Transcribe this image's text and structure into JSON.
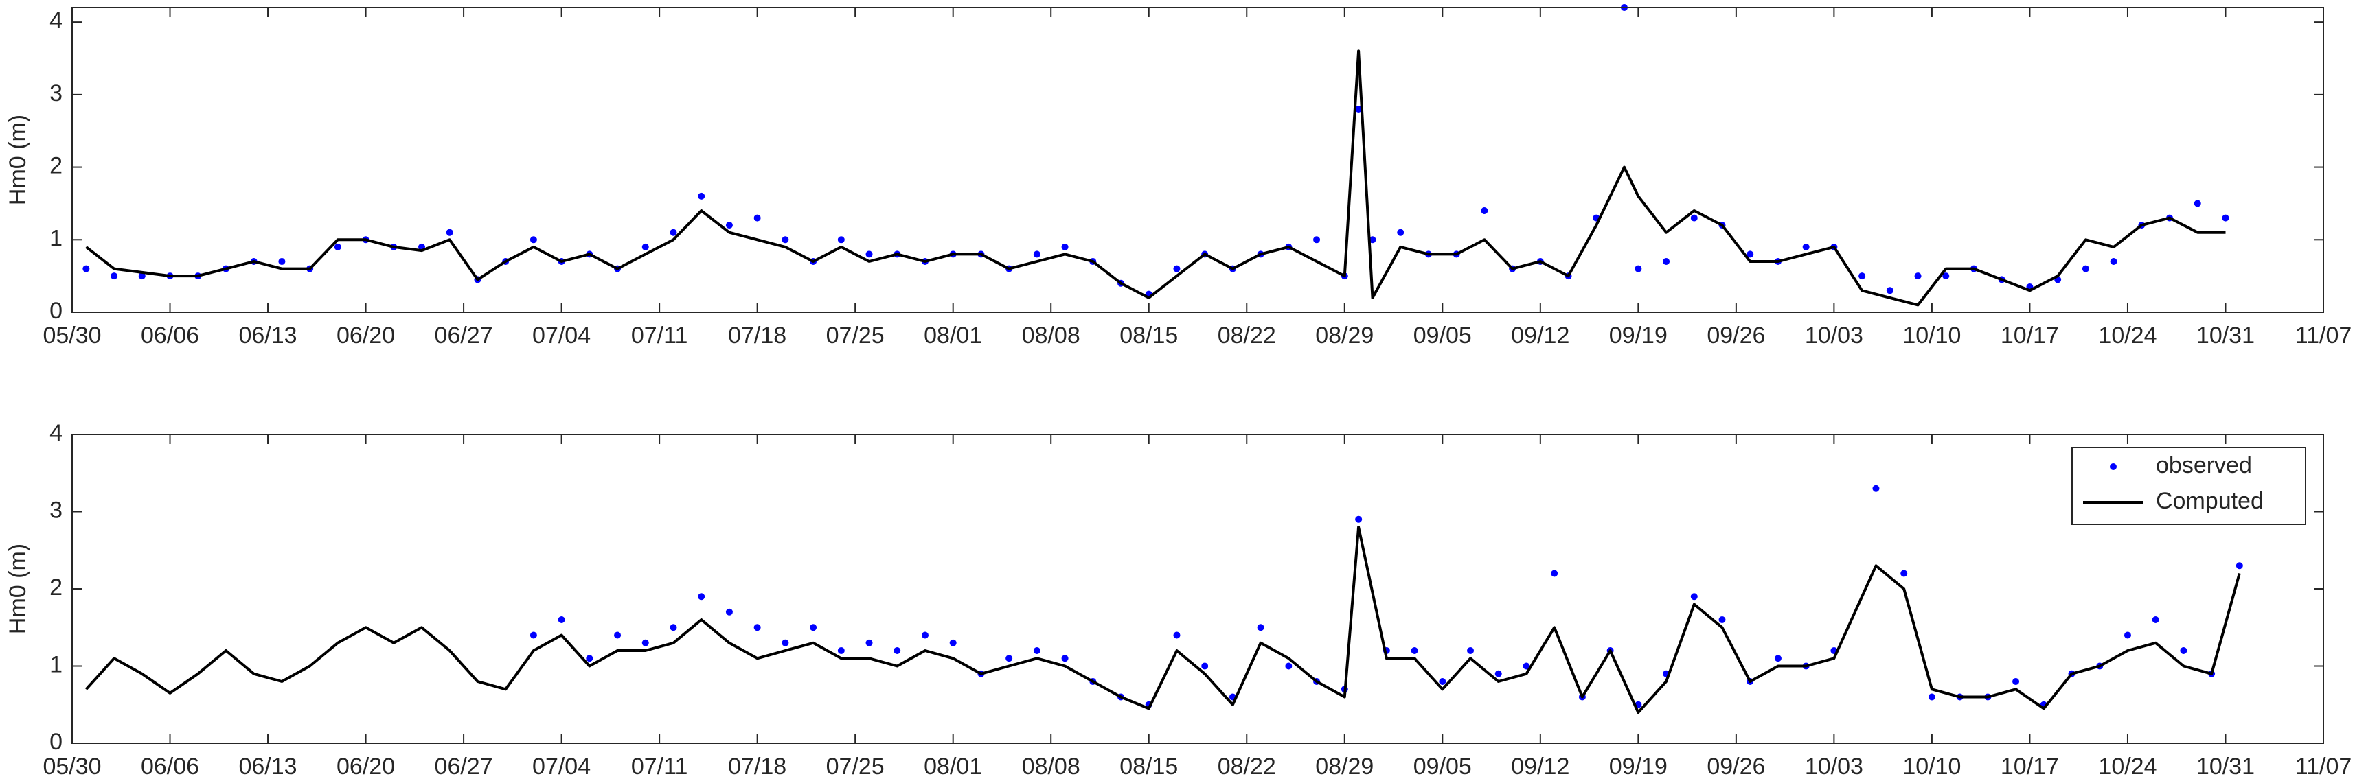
{
  "chart_data": [
    {
      "type": "line",
      "ylabel": "Hm0 (m)",
      "xlim": [
        "05/30",
        "11/07"
      ],
      "xticks": [
        "05/30",
        "06/06",
        "06/13",
        "06/20",
        "06/27",
        "07/04",
        "07/11",
        "07/18",
        "07/25",
        "08/01",
        "08/08",
        "08/15",
        "08/22",
        "08/29",
        "09/05",
        "09/12",
        "09/19",
        "09/26",
        "10/03",
        "10/10",
        "10/17",
        "10/24",
        "10/31",
        "11/07"
      ],
      "ylim": [
        0,
        4.2
      ],
      "yticks": [
        0,
        1,
        2,
        3,
        4
      ],
      "x": [
        "05/31",
        "06/02",
        "06/04",
        "06/06",
        "06/08",
        "06/10",
        "06/12",
        "06/14",
        "06/16",
        "06/18",
        "06/20",
        "06/22",
        "06/24",
        "06/26",
        "06/28",
        "06/30",
        "07/02",
        "07/04",
        "07/06",
        "07/08",
        "07/10",
        "07/12",
        "07/14",
        "07/16",
        "07/18",
        "07/20",
        "07/22",
        "07/24",
        "07/26",
        "07/28",
        "07/30",
        "08/01",
        "08/03",
        "08/05",
        "08/07",
        "08/09",
        "08/11",
        "08/13",
        "08/15",
        "08/17",
        "08/19",
        "08/21",
        "08/23",
        "08/25",
        "08/27",
        "08/29",
        "08/30",
        "08/31",
        "09/02",
        "09/04",
        "09/06",
        "09/08",
        "09/10",
        "09/12",
        "09/14",
        "09/16",
        "09/18",
        "09/19",
        "09/21",
        "09/23",
        "09/25",
        "09/27",
        "09/29",
        "10/01",
        "10/03",
        "10/05",
        "10/07",
        "10/09",
        "10/11",
        "10/13",
        "10/15",
        "10/17",
        "10/19",
        "10/21",
        "10/23",
        "10/25",
        "10/27",
        "10/29",
        "10/31"
      ],
      "series": [
        {
          "name": "observed",
          "color": "#0000ff",
          "style": "dots",
          "values": [
            0.6,
            0.5,
            0.5,
            0.5,
            0.5,
            0.6,
            0.7,
            0.7,
            0.6,
            0.9,
            1.0,
            0.9,
            0.9,
            1.1,
            0.45,
            0.7,
            1.0,
            0.7,
            0.8,
            0.6,
            0.9,
            1.1,
            1.6,
            1.2,
            1.3,
            1.0,
            0.7,
            1.0,
            0.8,
            0.8,
            0.7,
            0.8,
            0.8,
            0.6,
            0.8,
            0.9,
            0.7,
            0.4,
            0.25,
            0.6,
            0.8,
            0.6,
            0.8,
            0.9,
            1.0,
            0.5,
            2.8,
            1.0,
            1.1,
            0.8,
            0.8,
            1.4,
            0.6,
            0.7,
            0.5,
            1.3,
            4.2,
            0.6,
            0.7,
            1.3,
            1.2,
            0.8,
            0.7,
            0.9,
            0.9,
            0.5,
            0.3,
            0.5,
            0.5,
            0.6,
            0.45,
            0.35,
            0.45,
            0.6,
            0.7,
            1.2,
            1.3,
            1.5,
            1.3
          ]
        },
        {
          "name": "Computed",
          "color": "#000000",
          "style": "line",
          "values": [
            0.9,
            0.6,
            0.55,
            0.5,
            0.5,
            0.6,
            0.7,
            0.6,
            0.6,
            1.0,
            1.0,
            0.9,
            0.85,
            1.0,
            0.45,
            0.7,
            0.9,
            0.7,
            0.8,
            0.6,
            0.8,
            1.0,
            1.4,
            1.1,
            1.0,
            0.9,
            0.7,
            0.9,
            0.7,
            0.8,
            0.7,
            0.8,
            0.8,
            0.6,
            0.7,
            0.8,
            0.7,
            0.4,
            0.2,
            0.5,
            0.8,
            0.6,
            0.8,
            0.9,
            0.7,
            0.5,
            3.6,
            0.2,
            0.9,
            0.8,
            0.8,
            1.0,
            0.6,
            0.7,
            0.5,
            1.2,
            2.0,
            1.6,
            1.1,
            1.4,
            1.2,
            0.7,
            0.7,
            0.8,
            0.9,
            0.3,
            0.2,
            0.1,
            0.6,
            0.6,
            0.45,
            0.3,
            0.5,
            1.0,
            0.9,
            1.2,
            1.3,
            1.1,
            1.1
          ]
        }
      ]
    },
    {
      "type": "line",
      "ylabel": "Hm0 (m)",
      "xlim": [
        "05/30",
        "11/07"
      ],
      "xticks": [
        "05/30",
        "06/06",
        "06/13",
        "06/20",
        "06/27",
        "07/04",
        "07/11",
        "07/18",
        "07/25",
        "08/01",
        "08/08",
        "08/15",
        "08/22",
        "08/29",
        "09/05",
        "09/12",
        "09/19",
        "09/26",
        "10/03",
        "10/10",
        "10/17",
        "10/24",
        "10/31",
        "11/07"
      ],
      "ylim": [
        0,
        4
      ],
      "yticks": [
        0,
        1,
        2,
        3,
        4
      ],
      "legend": "northeast",
      "x": [
        "05/31",
        "06/02",
        "06/04",
        "06/06",
        "06/08",
        "06/10",
        "06/12",
        "06/14",
        "06/16",
        "06/18",
        "06/20",
        "06/22",
        "06/24",
        "06/26",
        "06/28",
        "06/30",
        "07/02",
        "07/04",
        "07/06",
        "07/08",
        "07/10",
        "07/12",
        "07/14",
        "07/16",
        "07/18",
        "07/20",
        "07/22",
        "07/24",
        "07/26",
        "07/28",
        "07/30",
        "08/01",
        "08/03",
        "08/05",
        "08/07",
        "08/09",
        "08/11",
        "08/13",
        "08/15",
        "08/17",
        "08/19",
        "08/21",
        "08/23",
        "08/25",
        "08/27",
        "08/29",
        "08/30",
        "09/01",
        "09/03",
        "09/05",
        "09/07",
        "09/09",
        "09/11",
        "09/13",
        "09/15",
        "09/17",
        "09/19",
        "09/21",
        "09/23",
        "09/25",
        "09/27",
        "09/29",
        "10/01",
        "10/03",
        "10/06",
        "10/08",
        "10/10",
        "10/12",
        "10/14",
        "10/16",
        "10/18",
        "10/20",
        "10/22",
        "10/24",
        "10/26",
        "10/28",
        "10/30",
        "11/01"
      ],
      "series": [
        {
          "name": "observed",
          "color": "#0000ff",
          "style": "dots",
          "values": [
            null,
            null,
            null,
            null,
            null,
            null,
            null,
            null,
            null,
            null,
            null,
            null,
            null,
            null,
            null,
            null,
            1.4,
            1.6,
            1.1,
            1.4,
            1.3,
            1.5,
            1.9,
            1.7,
            1.5,
            1.3,
            1.5,
            1.2,
            1.3,
            1.2,
            1.4,
            1.3,
            0.9,
            1.1,
            1.2,
            1.1,
            0.8,
            0.6,
            0.5,
            1.4,
            1.0,
            0.6,
            1.5,
            1.0,
            0.8,
            0.7,
            2.9,
            1.2,
            1.2,
            0.8,
            1.2,
            0.9,
            1.0,
            2.2,
            0.6,
            1.2,
            0.5,
            0.9,
            1.9,
            1.6,
            0.8,
            1.1,
            1.0,
            1.2,
            3.3,
            2.2,
            0.6,
            0.6,
            0.6,
            0.8,
            0.5,
            0.9,
            1.0,
            1.4,
            1.6,
            1.2,
            0.9,
            2.3
          ]
        },
        {
          "name": "Computed",
          "color": "#000000",
          "style": "line",
          "values": [
            0.7,
            1.1,
            0.9,
            0.65,
            0.9,
            1.2,
            0.9,
            0.8,
            1.0,
            1.3,
            1.5,
            1.3,
            1.5,
            1.2,
            0.8,
            0.7,
            1.2,
            1.4,
            1.0,
            1.2,
            1.2,
            1.3,
            1.6,
            1.3,
            1.1,
            1.2,
            1.3,
            1.1,
            1.1,
            1.0,
            1.2,
            1.1,
            0.9,
            1.0,
            1.1,
            1.0,
            0.8,
            0.6,
            0.45,
            1.2,
            0.9,
            0.5,
            1.3,
            1.1,
            0.8,
            0.6,
            2.8,
            1.1,
            1.1,
            0.7,
            1.1,
            0.8,
            0.9,
            1.5,
            0.6,
            1.2,
            0.4,
            0.8,
            1.8,
            1.5,
            0.8,
            1.0,
            1.0,
            1.1,
            2.3,
            2.0,
            0.7,
            0.6,
            0.6,
            0.7,
            0.45,
            0.9,
            1.0,
            1.2,
            1.3,
            1.0,
            0.9,
            2.2
          ]
        }
      ]
    }
  ]
}
